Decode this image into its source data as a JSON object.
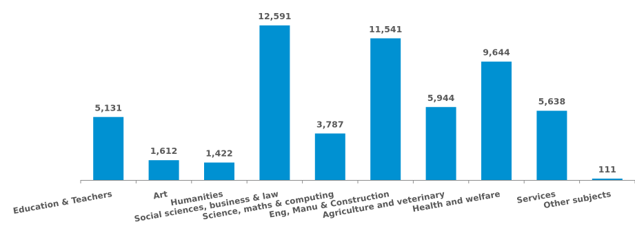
{
  "chart_data": {
    "type": "bar",
    "title": "",
    "xlabel": "",
    "ylabel": "",
    "categories": [
      "Education & Teachers",
      "Art",
      "Humanities",
      "Social sciences, business & law",
      "Science, maths & computing",
      "Eng, Manu & Construction",
      "Agriculture and veterinary",
      "Health and welfare",
      "Services",
      "Other subjects"
    ],
    "values": [
      5131,
      1612,
      1422,
      12591,
      3787,
      11541,
      5944,
      9644,
      5638,
      111
    ],
    "value_labels": [
      "5,131",
      "1,612",
      "1,422",
      "12,591",
      "3,787",
      "11,541",
      "5,944",
      "9,644",
      "5,638",
      "111"
    ],
    "ylim": [
      0,
      12591
    ],
    "grid": false,
    "legend": "none",
    "colors": {
      "bar": "#0091d2",
      "axis": "#8c8c8c",
      "text": "#595959"
    }
  }
}
